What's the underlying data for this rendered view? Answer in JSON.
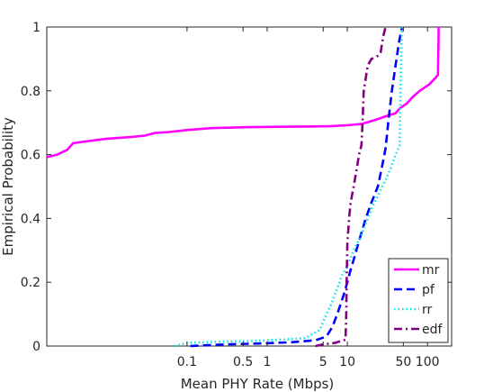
{
  "chart_data": {
    "type": "line",
    "title": "",
    "xlabel": "Mean PHY Rate (Mbps)",
    "ylabel": "Empirical Probability",
    "x_scale": "log",
    "xlim": [
      0.00178,
      200
    ],
    "ylim": [
      0,
      1
    ],
    "x_ticks": [
      {
        "value": 0.1,
        "label": "0.1"
      },
      {
        "value": 0.5,
        "label": "0.5"
      },
      {
        "value": 1,
        "label": "1"
      },
      {
        "value": 5,
        "label": "5"
      },
      {
        "value": 10,
        "label": "10"
      },
      {
        "value": 50,
        "label": "50"
      },
      {
        "value": 100,
        "label": "100"
      }
    ],
    "y_ticks": [
      {
        "value": 0,
        "label": "0"
      },
      {
        "value": 0.2,
        "label": "0.2"
      },
      {
        "value": 0.4,
        "label": "0.4"
      },
      {
        "value": 0.6,
        "label": "0.6"
      },
      {
        "value": 0.8,
        "label": "0.8"
      },
      {
        "value": 1,
        "label": "1"
      }
    ],
    "grid": false,
    "legend_position": "bottom-right",
    "series": [
      {
        "name": "mr",
        "color": "#ff00ff",
        "style": "solid",
        "points": [
          [
            0.00178,
            0.592
          ],
          [
            0.0024,
            0.6
          ],
          [
            0.0032,
            0.615
          ],
          [
            0.0038,
            0.636
          ],
          [
            0.005,
            0.64
          ],
          [
            0.007,
            0.645
          ],
          [
            0.01,
            0.65
          ],
          [
            0.02,
            0.655
          ],
          [
            0.03,
            0.66
          ],
          [
            0.04,
            0.668
          ],
          [
            0.06,
            0.671
          ],
          [
            0.1,
            0.677
          ],
          [
            0.2,
            0.683
          ],
          [
            0.5,
            0.686
          ],
          [
            1,
            0.687
          ],
          [
            3,
            0.688
          ],
          [
            6,
            0.689
          ],
          [
            10,
            0.692
          ],
          [
            15,
            0.696
          ],
          [
            20,
            0.705
          ],
          [
            25,
            0.713
          ],
          [
            30,
            0.72
          ],
          [
            40,
            0.73
          ],
          [
            45,
            0.745
          ],
          [
            55,
            0.76
          ],
          [
            65,
            0.78
          ],
          [
            80,
            0.8
          ],
          [
            105,
            0.82
          ],
          [
            125,
            0.84
          ],
          [
            135,
            0.85
          ],
          [
            136,
            0.9
          ],
          [
            137,
            0.95
          ],
          [
            138,
            1.0
          ]
        ]
      },
      {
        "name": "pf",
        "color": "#0000ff",
        "style": "dashed",
        "points": [
          [
            0.11,
            0.0
          ],
          [
            0.3,
            0.005
          ],
          [
            0.8,
            0.008
          ],
          [
            2,
            0.012
          ],
          [
            4,
            0.018
          ],
          [
            5.5,
            0.03
          ],
          [
            6.5,
            0.06
          ],
          [
            7.5,
            0.1
          ],
          [
            9,
            0.16
          ],
          [
            10,
            0.2
          ],
          [
            11,
            0.24
          ],
          [
            12,
            0.27
          ],
          [
            14,
            0.33
          ],
          [
            17,
            0.4
          ],
          [
            20,
            0.45
          ],
          [
            24,
            0.5
          ],
          [
            27,
            0.56
          ],
          [
            30,
            0.62
          ],
          [
            33,
            0.72
          ],
          [
            36,
            0.8
          ],
          [
            40,
            0.88
          ],
          [
            44,
            0.95
          ],
          [
            48,
            1.0
          ]
        ]
      },
      {
        "name": "rr",
        "color": "#00e5ee",
        "style": "dotted",
        "points": [
          [
            0.07,
            0.0
          ],
          [
            0.1,
            0.01
          ],
          [
            0.3,
            0.014
          ],
          [
            0.7,
            0.016
          ],
          [
            1.5,
            0.02
          ],
          [
            3,
            0.025
          ],
          [
            4.5,
            0.05
          ],
          [
            5.5,
            0.1
          ],
          [
            6.5,
            0.14
          ],
          [
            7.5,
            0.18
          ],
          [
            8.5,
            0.22
          ],
          [
            10,
            0.25
          ],
          [
            12,
            0.3
          ],
          [
            15,
            0.35
          ],
          [
            20,
            0.43
          ],
          [
            25,
            0.48
          ],
          [
            30,
            0.52
          ],
          [
            35,
            0.56
          ],
          [
            40,
            0.6
          ],
          [
            45,
            0.63
          ],
          [
            46,
            0.8
          ],
          [
            47,
            0.9
          ],
          [
            48,
            1.0
          ]
        ]
      },
      {
        "name": "edf",
        "color": "#800080",
        "style": "dashdot",
        "points": [
          [
            4,
            0.0
          ],
          [
            5,
            0.005
          ],
          [
            7,
            0.01
          ],
          [
            9.5,
            0.02
          ],
          [
            9.7,
            0.1
          ],
          [
            9.8,
            0.2
          ],
          [
            10,
            0.32
          ],
          [
            10.5,
            0.4
          ],
          [
            11,
            0.45
          ],
          [
            12,
            0.5
          ],
          [
            13,
            0.55
          ],
          [
            14,
            0.6
          ],
          [
            15,
            0.63
          ],
          [
            15.5,
            0.7
          ],
          [
            16,
            0.8
          ],
          [
            18,
            0.88
          ],
          [
            20,
            0.9
          ],
          [
            24,
            0.91
          ],
          [
            26,
            0.92
          ],
          [
            28,
            0.97
          ],
          [
            30,
            1.0
          ]
        ]
      }
    ]
  }
}
